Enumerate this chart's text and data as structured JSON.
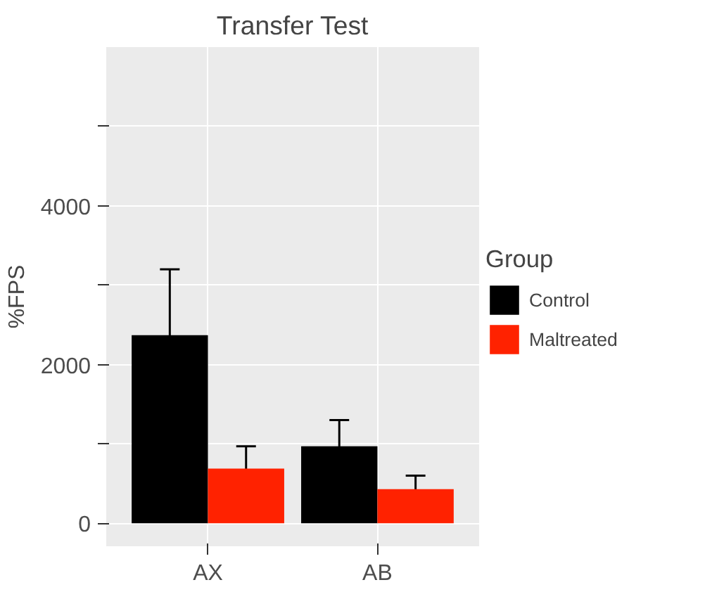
{
  "chart_data": {
    "type": "bar",
    "title": "Transfer Test",
    "ylabel": "%FPS",
    "legend_title": "Group",
    "categories": [
      "AX",
      "AB"
    ],
    "series": [
      {
        "name": "Control",
        "color": "#000000",
        "values": [
          2370,
          970
        ],
        "errors": [
          830,
          330
        ]
      },
      {
        "name": "Maltreated",
        "color": "#ff2200",
        "values": [
          690,
          430
        ],
        "errors": [
          280,
          170
        ]
      }
    ],
    "ylim": [
      -290,
      6000
    ],
    "yticks": [
      0,
      {
        "value": 1000,
        "label": null
      },
      2000,
      {
        "value": 3000,
        "label": null
      },
      4000,
      {
        "value": 5000,
        "label": null
      }
    ],
    "grid": true,
    "legend": "right"
  }
}
